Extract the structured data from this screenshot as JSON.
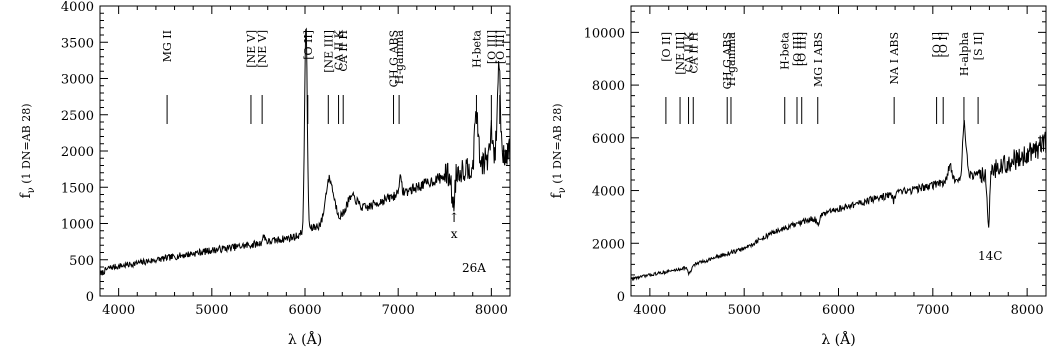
{
  "chart_data": [
    {
      "type": "line",
      "panel_tag": "26A",
      "xlabel": "λ (Å)",
      "ylabel": "f_ν (1 DN=AB 28)",
      "ylabel_main": "f",
      "ylabel_sub": "ν",
      "ylabel_rest": " (1 DN=AB 28)",
      "xlim": [
        3800,
        8200
      ],
      "ylim": [
        0,
        4000
      ],
      "xticks": [
        4000,
        5000,
        6000,
        7000,
        8000
      ],
      "yticks": [
        0,
        500,
        1000,
        1500,
        2000,
        2500,
        3000,
        3500,
        4000
      ],
      "grid": false,
      "annotation": {
        "arrow_text": "↑",
        "text": "x",
        "x": 7600
      },
      "line_ids": [
        {
          "label": "MG II",
          "x": 4520
        },
        {
          "label": "[NE V]",
          "x": 5420
        },
        {
          "label": "[NE V]",
          "x": 5540
        },
        {
          "label": "[O II]",
          "x": 6030
        },
        {
          "label": "[NE III]",
          "x": 6250
        },
        {
          "label": "CA II K",
          "x": 6360
        },
        {
          "label": "CA II H",
          "x": 6410
        },
        {
          "label": "CH G ABS",
          "x": 6950
        },
        {
          "label": "H-gamma",
          "x": 7010
        },
        {
          "label": "H-beta",
          "x": 7840
        },
        {
          "label": "[O III]",
          "x": 8000
        },
        {
          "label": "[O III]",
          "x": 8090
        }
      ],
      "continuum": [
        [
          3800,
          300
        ],
        [
          3900,
          390
        ],
        [
          4100,
          430
        ],
        [
          4500,
          520
        ],
        [
          5000,
          630
        ],
        [
          5500,
          720
        ],
        [
          5900,
          820
        ],
        [
          6100,
          950
        ],
        [
          6400,
          1050
        ],
        [
          6800,
          1300
        ],
        [
          7200,
          1500
        ],
        [
          7550,
          1680
        ],
        [
          7800,
          1800
        ],
        [
          8000,
          1900
        ],
        [
          8200,
          2000
        ]
      ],
      "features": [
        [
          6010,
          2850,
          14
        ],
        [
          6250,
          480,
          35
        ],
        [
          6500,
          250,
          60
        ],
        [
          6300,
          250,
          40
        ],
        [
          7840,
          800,
          16
        ],
        [
          8000,
          350,
          14
        ],
        [
          8080,
          1250,
          16
        ],
        [
          7590,
          -450,
          16
        ],
        [
          5560,
          90,
          16
        ],
        [
          7020,
          200,
          16
        ]
      ]
    },
    {
      "type": "line",
      "panel_tag": "14C",
      "xlabel": "λ (Å)",
      "ylabel": "f_ν (1 DN=AB 28)",
      "ylabel_main": "f",
      "ylabel_sub": "ν",
      "ylabel_rest": " (1 DN=AB 28)",
      "xlim": [
        3800,
        8200
      ],
      "ylim": [
        0,
        11000
      ],
      "xticks": [
        4000,
        5000,
        6000,
        7000,
        8000
      ],
      "yticks": [
        0,
        2000,
        4000,
        6000,
        8000,
        10000
      ],
      "grid": false,
      "line_ids": [
        {
          "label": "[O II]",
          "x": 4170
        },
        {
          "label": "[NE III]",
          "x": 4320
        },
        {
          "label": "CA II K",
          "x": 4410
        },
        {
          "label": "CA II H",
          "x": 4460
        },
        {
          "label": "CH G ABS",
          "x": 4820
        },
        {
          "label": "H-gamma",
          "x": 4860
        },
        {
          "label": "H-beta",
          "x": 5430
        },
        {
          "label": "[O III]",
          "x": 5560
        },
        {
          "label": "[O III]",
          "x": 5610
        },
        {
          "label": "MG I ABS",
          "x": 5780
        },
        {
          "label": "NA I ABS",
          "x": 6590
        },
        {
          "label": "[O I]",
          "x": 7040
        },
        {
          "label": "[O I]",
          "x": 7110
        },
        {
          "label": "H-alpha",
          "x": 7330
        },
        {
          "label": "[S II]",
          "x": 7480
        }
      ],
      "continuum": [
        [
          3800,
          650
        ],
        [
          4000,
          800
        ],
        [
          4300,
          1000
        ],
        [
          4600,
          1350
        ],
        [
          5000,
          1800
        ],
        [
          5300,
          2400
        ],
        [
          5700,
          2900
        ],
        [
          6000,
          3300
        ],
        [
          6500,
          3800
        ],
        [
          7000,
          4200
        ],
        [
          7300,
          4500
        ],
        [
          7600,
          4700
        ],
        [
          8000,
          5400
        ],
        [
          8200,
          5800
        ]
      ],
      "features": [
        [
          7330,
          2000,
          14
        ],
        [
          7360,
          700,
          12
        ],
        [
          7590,
          -1800,
          12
        ],
        [
          6590,
          -250,
          18
        ],
        [
          7180,
          600,
          16
        ],
        [
          5780,
          -250,
          18
        ],
        [
          4420,
          -300,
          18
        ]
      ]
    }
  ]
}
